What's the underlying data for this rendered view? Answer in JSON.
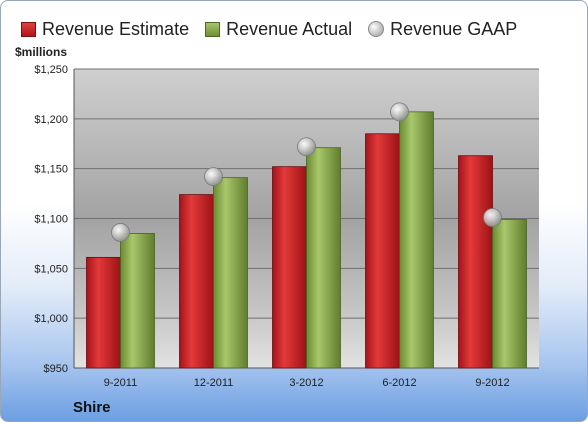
{
  "legend": {
    "items": [
      {
        "label": "Revenue Estimate",
        "icon": "red-bar-swatch"
      },
      {
        "label": "Revenue Actual",
        "icon": "green-bar-swatch"
      },
      {
        "label": "Revenue GAAP",
        "icon": "grey-sphere-swatch"
      }
    ]
  },
  "unit_label": "$millions",
  "company": "Shire",
  "chart_data": {
    "type": "bar",
    "categories": [
      "9-2011",
      "12-2011",
      "3-2012",
      "6-2012",
      "9-2012"
    ],
    "series": [
      {
        "name": "Revenue Estimate",
        "values": [
          1061,
          1124,
          1152,
          1185,
          1163
        ],
        "color": "#c8201f"
      },
      {
        "name": "Revenue Actual",
        "values": [
          1085,
          1141,
          1171,
          1207,
          1099
        ],
        "color": "#8aab4e"
      },
      {
        "name": "Revenue GAAP",
        "type": "scatter",
        "values": [
          1086,
          1142,
          1172,
          1207,
          1101
        ],
        "color": "#b5b5b5"
      }
    ],
    "ylabel": "$millions",
    "ylim": [
      950,
      1250
    ],
    "y_ticks": [
      950,
      1000,
      1050,
      1100,
      1150,
      1200,
      1250
    ],
    "y_tick_labels": [
      "$950",
      "$1,000",
      "$1,050",
      "$1,100",
      "$1,150",
      "$1,200",
      "$1,250"
    ],
    "grid": true,
    "legend_position": "top"
  }
}
